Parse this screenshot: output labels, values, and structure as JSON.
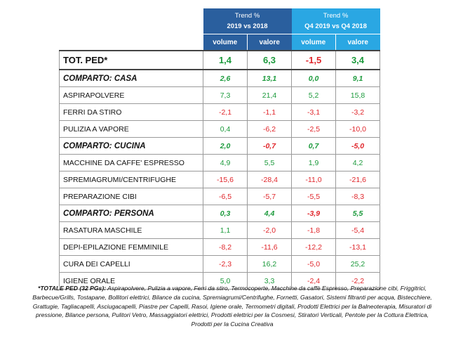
{
  "header": {
    "group1_title": "Trend %",
    "group1_period": "2019 vs 2018",
    "group2_title": "Trend %",
    "group2_period": "Q4 2019 vs Q4 2018",
    "col_volume": "volume",
    "col_valore": "valore"
  },
  "rows": [
    {
      "kind": "total",
      "label": "TOT. PED*",
      "v1": "1,4",
      "v2": "6,3",
      "v3": "-1,5",
      "v4": "3,4"
    },
    {
      "kind": "comparto",
      "label": "COMPARTO: CASA",
      "v1": "2,6",
      "v2": "13,1",
      "v3": "0,0",
      "v4": "9,1"
    },
    {
      "kind": "item",
      "label": "ASPIRAPOLVERE",
      "v1": "7,3",
      "v2": "21,4",
      "v3": "5,2",
      "v4": "15,8"
    },
    {
      "kind": "item",
      "label": "FERRI DA STIRO",
      "v1": "-2,1",
      "v2": "-1,1",
      "v3": "-3,1",
      "v4": "-3,2"
    },
    {
      "kind": "item",
      "label": "PULIZIA A VAPORE",
      "v1": "0,4",
      "v2": "-6,2",
      "v3": "-2,5",
      "v4": "-10,0"
    },
    {
      "kind": "comparto",
      "label": "COMPARTO: CUCINA",
      "v1": "2,0",
      "v2": "-0,7",
      "v3": "0,7",
      "v4": "-5,0"
    },
    {
      "kind": "item",
      "label": "MACCHINE DA CAFFE' ESPRESSO",
      "v1": "4,9",
      "v2": "5,5",
      "v3": "1,9",
      "v4": "4,2"
    },
    {
      "kind": "item",
      "label": "SPREMIAGRUMI/CENTRIFUGHE",
      "v1": "-15,6",
      "v2": "-28,4",
      "v3": "-11,0",
      "v4": "-21,6"
    },
    {
      "kind": "item",
      "label": "PREPARAZIONE CIBI",
      "v1": "-6,5",
      "v2": "-5,7",
      "v3": "-5,5",
      "v4": "-8,3"
    },
    {
      "kind": "comparto",
      "label": "COMPARTO: PERSONA",
      "v1": "0,3",
      "v2": "4,4",
      "v3": "-3,9",
      "v4": "5,5"
    },
    {
      "kind": "item",
      "label": "RASATURA MASCHILE",
      "v1": "1,1",
      "v2": "-2,0",
      "v3": "-1,8",
      "v4": "-5,4"
    },
    {
      "kind": "item",
      "label": "DEPI-EPILAZIONE FEMMINILE",
      "v1": "-8,2",
      "v2": "-11,6",
      "v3": "-12,2",
      "v4": "-13,1"
    },
    {
      "kind": "item",
      "label": "CURA DEI CAPELLI",
      "v1": "-2,3",
      "v2": "16,2",
      "v3": "-5,0",
      "v4": "25,2"
    },
    {
      "kind": "item",
      "label": "IGIENE ORALE",
      "v1": "5,0",
      "v2": "3,3",
      "v3": "-2,4",
      "v4": "-2,2"
    }
  ],
  "colors": {
    "positive": "#1c9a3c",
    "negative": "#e0262b",
    "header_dark": "#2a5f9e",
    "header_light": "#2aa7e3"
  },
  "footnote": {
    "lead": "*TOTALE PED (32 PGs):",
    "text": "Aspirapolvere, Pulizia a vapore, Ferri da stiro, Termocoperte, Macchine da caffè Espresso, Preparazione cibi, Friggitrici, Barbecue/Grills, Tostapane, Bollitori elettrici, Bilance da cucina, Spremiagrumi/Centrifughe, Fornetti, Gasatori, Sistemi filtranti per acqua, Bistecchiere, Grattugie, Tagliacapelli, Asciugacapelli, Piastre per Capelli, Rasoi, Igiene orale, Termometri digitali, Prodotti Elettrici per la Balneoterapia, Misuratori di pressione, Bilance persona, Pulitori Vetro, Massaggiatori elettrici, Prodotti elettrici per la Cosmesi, Stiratori Verticali, Pentole per la Cottura Elettrica, Prodotti per la Cucina Creativa"
  }
}
